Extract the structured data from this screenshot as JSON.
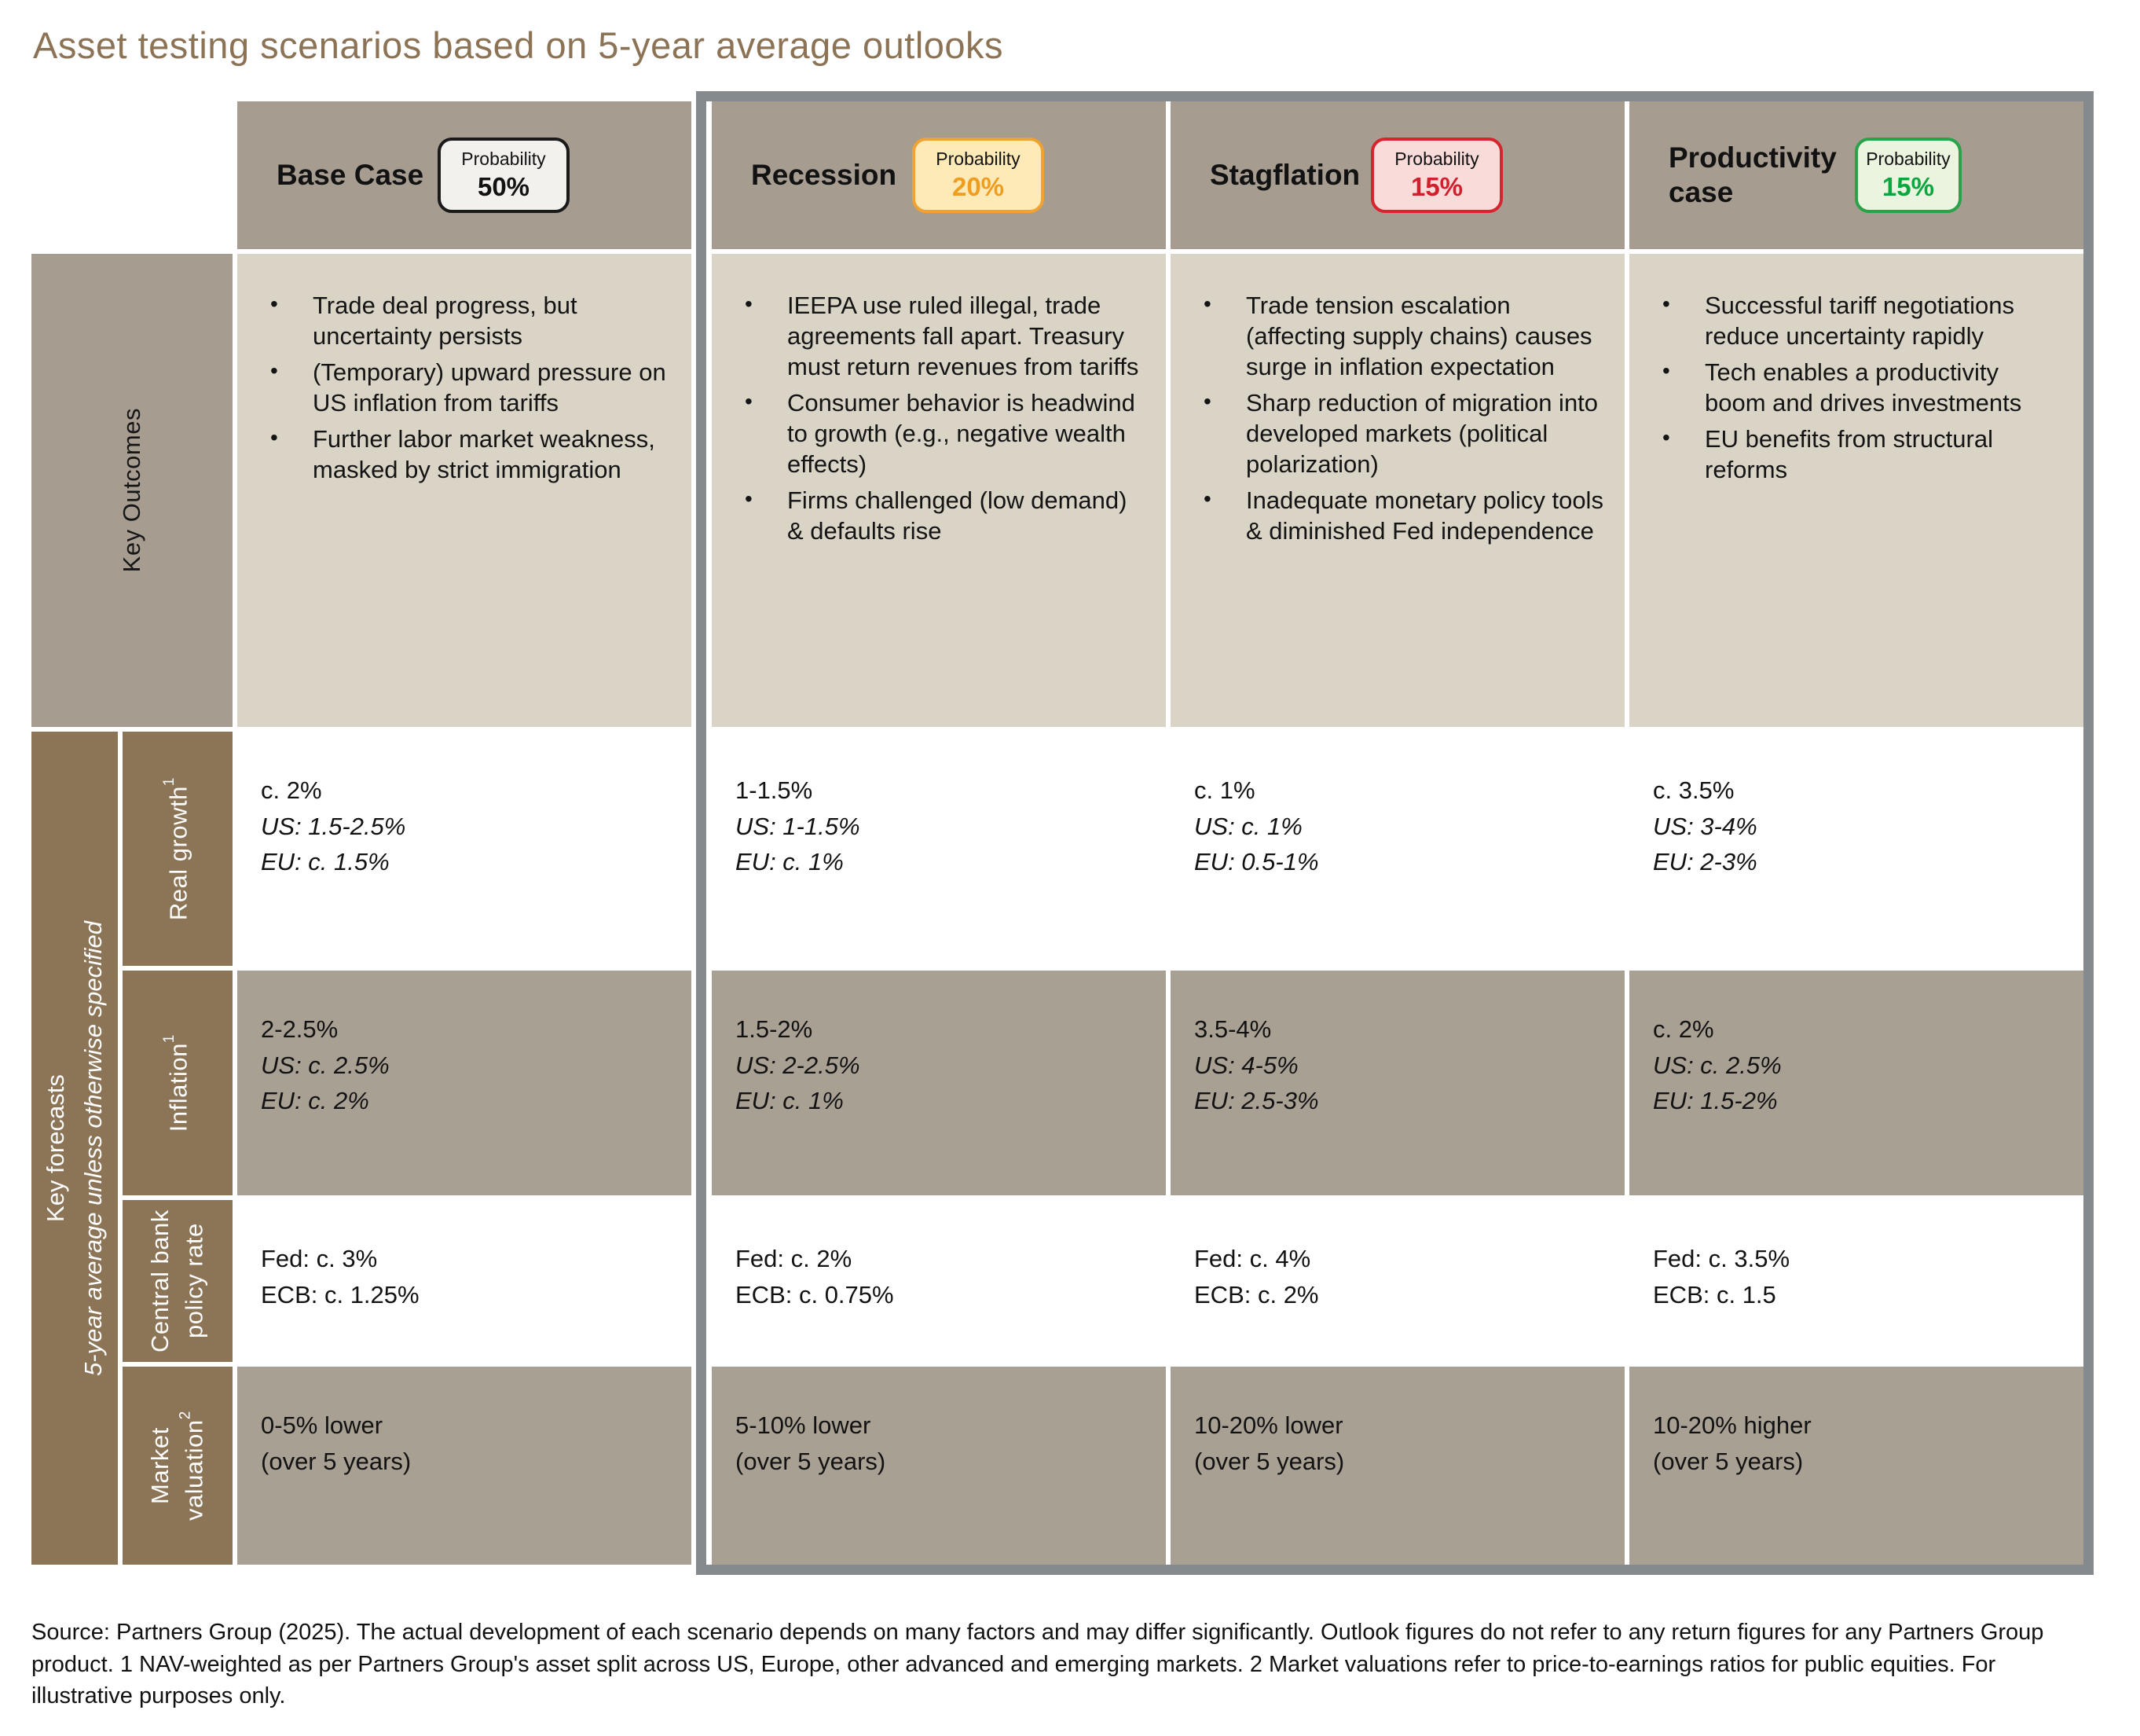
{
  "title": "Asset testing scenarios based on 5-year average outlooks",
  "probability_label": "Probability",
  "colors": {
    "title": "#8d7355",
    "header_bg": "#a69c90",
    "outcome_bg": "#dad4c7",
    "row_shade_bg": "#a9a094",
    "sidebar_bg": "#8c7457",
    "frame": "#848a8e"
  },
  "left_headers": {
    "key_outcomes": "Key Outcomes",
    "key_forecasts": "Key forecasts",
    "key_forecasts_note": "5-year average unless otherwise specified",
    "forecast_rows": [
      {
        "label": "Real growth",
        "sup": "1"
      },
      {
        "label": "Inflation",
        "sup": "1"
      },
      {
        "label": "Central bank policy rate",
        "sup": ""
      },
      {
        "label": "Market valuation",
        "sup": "2"
      }
    ]
  },
  "scenarios": [
    {
      "name": "Base Case",
      "probability": "50%",
      "badge": {
        "bg": "#f2f1ed",
        "border": "#1a1a1a",
        "value_color": "#121212"
      },
      "outcomes": [
        "Trade deal progress, but uncertainty persists",
        "(Temporary) upward pressure on US inflation from tariffs",
        "Further labor market weakness, masked by strict immigration"
      ],
      "real_growth": [
        "c. 2%",
        "US: 1.5-2.5%",
        "EU: c. 1.5%"
      ],
      "inflation": [
        "2-2.5%",
        "US: c. 2.5%",
        "EU: c. 2%"
      ],
      "policy_rate": [
        "Fed: c. 3%",
        "ECB: c. 1.25%"
      ],
      "valuation": [
        "0-5% lower",
        "(over 5 years)"
      ]
    },
    {
      "name": "Recession",
      "probability": "20%",
      "badge": {
        "bg": "#fdeab6",
        "border": "#f0a232",
        "value_color": "#ef9d20"
      },
      "outcomes": [
        "IEEPA use ruled illegal, trade agreements fall apart. Treasury must return revenues from tariffs",
        "Consumer behavior is headwind to growth (e.g., negative wealth effects)",
        "Firms challenged (low demand) & defaults rise"
      ],
      "real_growth": [
        "1-1.5%",
        "US: 1-1.5%",
        "EU: c. 1%"
      ],
      "inflation": [
        "1.5-2%",
        "US: 2-2.5%",
        "EU: c. 1%"
      ],
      "policy_rate": [
        "Fed: c. 2%",
        "ECB: c. 0.75%"
      ],
      "valuation": [
        "5-10% lower",
        "(over 5 years)"
      ]
    },
    {
      "name": "Stagflation",
      "probability": "15%",
      "badge": {
        "bg": "#f9dbda",
        "border": "#d6252e",
        "value_color": "#d1202c"
      },
      "outcomes": [
        "Trade tension escalation (affecting supply chains) causes surge in inflation expectation",
        "Sharp reduction of migration into developed markets (political polarization)",
        "Inadequate monetary policy tools & diminished Fed independence"
      ],
      "real_growth": [
        "c. 1%",
        "US: c. 1%",
        "EU: 0.5-1%"
      ],
      "inflation": [
        "3.5-4%",
        "US: 4-5%",
        "EU: 2.5-3%"
      ],
      "policy_rate": [
        "Fed: c. 4%",
        "ECB: c. 2%"
      ],
      "valuation": [
        "10-20% lower",
        "(over 5 years)"
      ]
    },
    {
      "name": "Productivity case",
      "probability": "15%",
      "badge": {
        "bg": "#eaf4df",
        "border": "#28a349",
        "value_color": "#0aa63e"
      },
      "outcomes": [
        "Successful tariff negotiations reduce uncertainty rapidly",
        "Tech enables a productivity boom and drives investments",
        "EU benefits from structural reforms"
      ],
      "real_growth": [
        "c. 3.5%",
        "US: 3-4%",
        "EU: 2-3%"
      ],
      "inflation": [
        "c. 2%",
        "US: c. 2.5%",
        "EU: 1.5-2%"
      ],
      "policy_rate": [
        "Fed: c. 3.5%",
        "ECB: c. 1.5"
      ],
      "valuation": [
        "10-20% higher",
        "(over 5 years)"
      ]
    }
  ],
  "source_note": "Source: Partners Group (2025). The actual development of each scenario depends on many factors and may differ significantly. Outlook figures do not refer to any return figures for any Partners Group product. 1 NAV-weighted as per Partners Group's asset split across US, Europe, other advanced and emerging markets. 2 Market valuations refer to price-to-earnings ratios for public equities. For illustrative purposes only."
}
